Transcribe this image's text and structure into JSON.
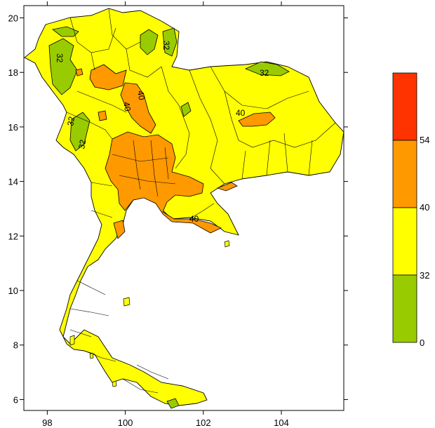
{
  "map": {
    "x_axis": {
      "ticks": [
        "98",
        "100",
        "102",
        "104"
      ],
      "values": [
        98,
        100,
        102,
        104
      ],
      "range": [
        97.4,
        105.6
      ]
    },
    "y_axis": {
      "ticks": [
        "6",
        "8",
        "10",
        "12",
        "14",
        "16",
        "18",
        "20"
      ],
      "values": [
        6,
        8,
        10,
        12,
        14,
        16,
        18,
        20
      ],
      "range": [
        5.6,
        20.45
      ]
    },
    "contour_labels": [
      "32",
      "32",
      "32",
      "32",
      "32",
      "40",
      "40",
      "40",
      "40"
    ]
  },
  "color_scale": {
    "bands": [
      {
        "from": "0",
        "to": "32",
        "color": "#99CC00"
      },
      {
        "from": "32",
        "to": "40",
        "color": "#FFFF00"
      },
      {
        "from": "40",
        "to": "54",
        "color": "#FF9900"
      },
      {
        "from": "54",
        "to": "",
        "color": "#FF3300"
      }
    ],
    "labels": [
      "0",
      "32",
      "40",
      "54"
    ]
  },
  "colors": {
    "low": "#99CC00",
    "mid": "#FFFF00",
    "high": "#FF9900",
    "extreme": "#FF3300",
    "outline": "#000000"
  }
}
